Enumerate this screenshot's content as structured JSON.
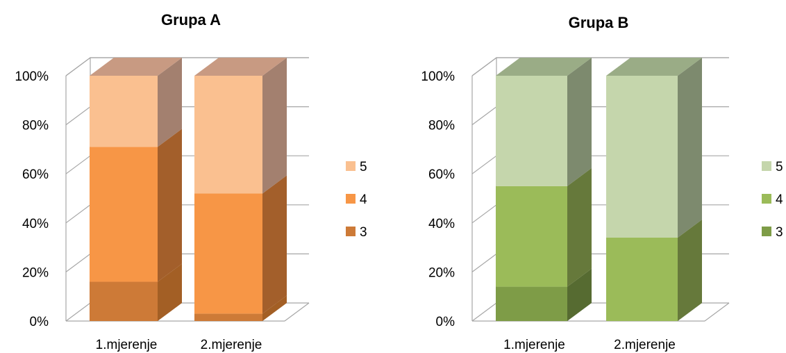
{
  "chart_data": [
    {
      "type": "bar",
      "stacked": true,
      "style": "3d-stacked-100-percent",
      "title": "Grupa A",
      "categories": [
        "1.mjerenje",
        "2.mjerenje"
      ],
      "ylim": [
        0,
        100
      ],
      "y_ticks": [
        "0%",
        "20%",
        "40%",
        "60%",
        "80%",
        "100%"
      ],
      "grid": true,
      "legend_position": "right",
      "series": [
        {
          "name": "3",
          "values": [
            16,
            3
          ],
          "color": "#CD7A37",
          "side_color": "#A35F25",
          "top_color": "#B66B2E"
        },
        {
          "name": "4",
          "values": [
            55,
            49
          ],
          "color": "#F79646",
          "side_color": "#A35F2B",
          "top_color": "#C97A3A"
        },
        {
          "name": "5",
          "values": [
            29,
            48
          ],
          "color": "#FAC090",
          "side_color": "#A3806F",
          "top_color": "#C89A82"
        }
      ]
    },
    {
      "type": "bar",
      "stacked": true,
      "style": "3d-stacked-100-percent",
      "title": "Grupa B",
      "categories": [
        "1.mjerenje",
        "2.mjerenje"
      ],
      "ylim": [
        0,
        100
      ],
      "y_ticks": [
        "0%",
        "20%",
        "40%",
        "60%",
        "80%",
        "100%"
      ],
      "grid": true,
      "legend_position": "right",
      "series": [
        {
          "name": "3",
          "values": [
            14,
            0
          ],
          "color": "#7E9C47",
          "side_color": "#566B31",
          "top_color": "#6B853C"
        },
        {
          "name": "4",
          "values": [
            41,
            34
          ],
          "color": "#9BBB59",
          "side_color": "#66793B",
          "top_color": "#80994A"
        },
        {
          "name": "5",
          "values": [
            45,
            66
          ],
          "color": "#C5D6AC",
          "side_color": "#7D8A6E",
          "top_color": "#9AAC86"
        }
      ]
    }
  ]
}
